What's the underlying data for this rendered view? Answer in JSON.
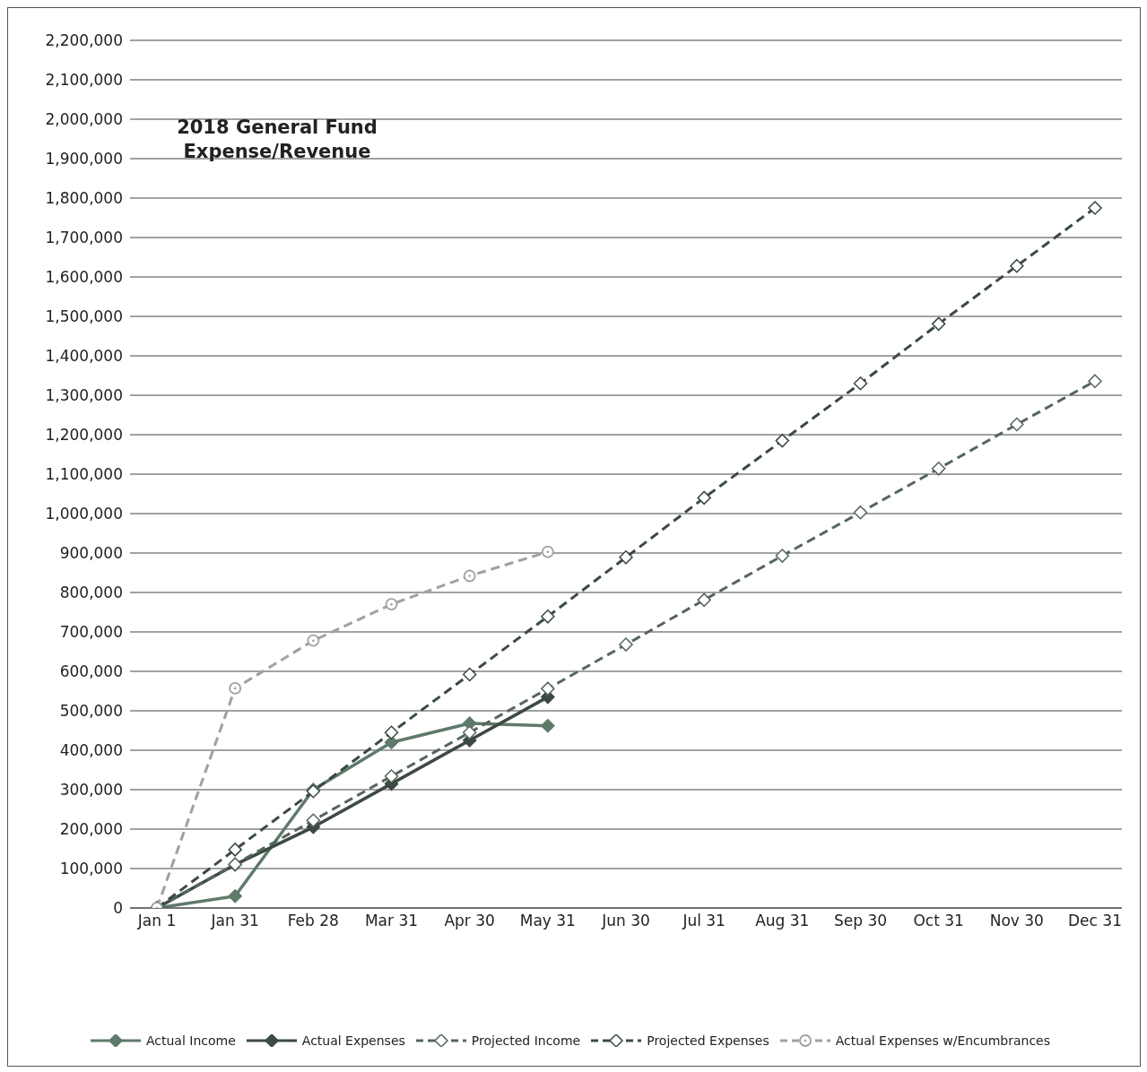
{
  "chart_data": {
    "type": "line",
    "title": "2018 General Fund Expense/Revenue",
    "categories": [
      "Jan 1",
      "Jan 31",
      "Feb 28",
      "Mar 31",
      "Apr 30",
      "May 31",
      "Jun 30",
      "Jul 31",
      "Aug 31",
      "Sep 30",
      "Oct 31",
      "Nov 30",
      "Dec 31"
    ],
    "series": [
      {
        "name": "Actual Income",
        "color": "#5f7a6a",
        "marker": "diamond",
        "line_style": "solid",
        "values": [
          0,
          30000,
          300000,
          420000,
          468000,
          462000,
          null,
          null,
          null,
          null,
          null,
          null,
          null
        ]
      },
      {
        "name": "Actual Expenses",
        "color": "#3b4a42",
        "marker": "diamond",
        "line_style": "solid",
        "values": [
          0,
          110000,
          205000,
          315000,
          425000,
          535000,
          null,
          null,
          null,
          null,
          null,
          null,
          null
        ]
      },
      {
        "name": "Projected Income",
        "color": "#55665b",
        "marker": "diamond",
        "line_style": "dashed",
        "values": [
          0,
          111000,
          222000,
          334000,
          445000,
          556000,
          668000,
          781000,
          893000,
          1003000,
          1114000,
          1226000,
          1336000
        ]
      },
      {
        "name": "Projected Expenses",
        "color": "#3a4a40",
        "marker": "diamond",
        "line_style": "dashed",
        "values": [
          0,
          148000,
          296000,
          445000,
          592000,
          739000,
          889000,
          1040000,
          1185000,
          1330000,
          1481000,
          1628000,
          1775000
        ]
      },
      {
        "name": "Actual Expenses w/Encumbrances",
        "color": "#a0a0a0",
        "marker": "circle",
        "line_style": "dashed",
        "values": [
          0,
          557000,
          678000,
          770000,
          842000,
          903000,
          null,
          null,
          null,
          null,
          null,
          null,
          null
        ]
      }
    ],
    "ylim": [
      0,
      2200000
    ],
    "yticks": [
      {
        "value": 0,
        "label": "0"
      },
      {
        "value": 100000,
        "label": "100,000"
      },
      {
        "value": 200000,
        "label": "200,000"
      },
      {
        "value": 300000,
        "label": "300,000"
      },
      {
        "value": 400000,
        "label": "400,000"
      },
      {
        "value": 500000,
        "label": "500,000"
      },
      {
        "value": 600000,
        "label": "600,000"
      },
      {
        "value": 700000,
        "label": "700,000"
      },
      {
        "value": 800000,
        "label": "800,000"
      },
      {
        "value": 900000,
        "label": "900,000"
      },
      {
        "value": 1000000,
        "label": "1,000,000"
      },
      {
        "value": 1100000,
        "label": "1,100,000"
      },
      {
        "value": 1200000,
        "label": "1,200,000"
      },
      {
        "value": 1300000,
        "label": "1,300,000"
      },
      {
        "value": 1400000,
        "label": "1,400,000"
      },
      {
        "value": 1500000,
        "label": "1,500,000"
      },
      {
        "value": 1600000,
        "label": "1,600,000"
      },
      {
        "value": 1700000,
        "label": "1,700,000"
      },
      {
        "value": 1800000,
        "label": "1,800,000"
      },
      {
        "value": 1900000,
        "label": "1,900,000"
      },
      {
        "value": 2000000,
        "label": "2,000,000"
      },
      {
        "value": 2100000,
        "label": "2,100,000"
      },
      {
        "value": 2200000,
        "label": "2,200,000"
      }
    ],
    "grid": "y",
    "legend": "bottom"
  }
}
